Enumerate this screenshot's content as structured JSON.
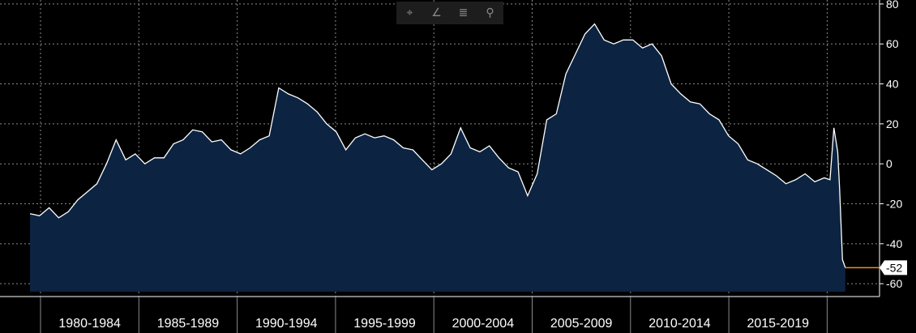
{
  "toolbar": {
    "tools": [
      {
        "icon": "crosshair-icon",
        "glyph": "⌖"
      },
      {
        "icon": "draw-line-icon",
        "glyph": "∠"
      },
      {
        "icon": "list-icon",
        "glyph": "≣"
      },
      {
        "icon": "zoom-icon",
        "glyph": "⚲"
      }
    ]
  },
  "colors": {
    "background": "#000000",
    "area_fill": "#0c2442",
    "line": "#ffffff",
    "grid": "#8a8a8a",
    "last_value_marker": "#f28c28",
    "axis_text": "#ffffff"
  },
  "chart_data": {
    "type": "area",
    "title": "",
    "xlabel": "",
    "ylabel": "",
    "ylim": [
      -64,
      82
    ],
    "yticks": [
      80,
      60,
      40,
      20,
      0,
      -20,
      -40,
      -60
    ],
    "y_axis_side": "right",
    "x_categories": [
      "1980-1984",
      "1985-1989",
      "1990-1994",
      "1995-1999",
      "2000-2004",
      "2005-2009",
      "2010-2014",
      "2015-2019"
    ],
    "x_range": [
      1978.0,
      2021.2
    ],
    "grid": true,
    "last_value_label": "-52",
    "series": [
      {
        "x": [
          1978.0,
          1978.5,
          1979.0,
          1979.5,
          1980.0,
          1980.5,
          1981.0,
          1981.5,
          1982.0,
          1982.5,
          1983.0,
          1983.5,
          1984.0,
          1984.5,
          1985.0,
          1985.5,
          1986.0,
          1986.5,
          1987.0,
          1987.5,
          1988.0,
          1988.5,
          1989.0,
          1989.5,
          1990.0,
          1990.5,
          1991.0,
          1991.5,
          1992.0,
          1992.5,
          1993.0,
          1993.5,
          1994.0,
          1994.5,
          1995.0,
          1995.5,
          1996.0,
          1996.5,
          1997.0,
          1997.5,
          1998.0,
          1998.5,
          1999.0,
          1999.5,
          2000.0,
          2000.5,
          2001.0,
          2001.5,
          2002.0,
          2002.5,
          2003.0,
          2003.5,
          2004.0,
          2004.5,
          2005.0,
          2005.5,
          2006.0,
          2006.5,
          2007.0,
          2007.5,
          2008.0,
          2008.5,
          2009.0,
          2009.5,
          2010.0,
          2010.5,
          2011.0,
          2011.5,
          2012.0,
          2012.5,
          2013.0,
          2013.5,
          2014.0,
          2014.5,
          2015.0,
          2015.5,
          2016.0,
          2016.5,
          2017.0,
          2017.5,
          2018.0,
          2018.5,
          2019.0,
          2019.5,
          2019.8,
          2020.0,
          2020.2,
          2020.3,
          2020.45,
          2020.6
        ],
        "y": [
          -25,
          -26,
          -22,
          -27,
          -24,
          -18,
          -14,
          -10,
          0,
          12,
          2,
          5,
          0,
          3,
          3,
          10,
          12,
          17,
          16,
          11,
          12,
          7,
          5,
          8,
          12,
          14,
          38,
          35,
          33,
          30,
          26,
          20,
          16,
          7,
          13,
          15,
          13,
          14,
          12,
          8,
          7,
          2,
          -3,
          0,
          5,
          18,
          8,
          6,
          9,
          3,
          -2,
          -4,
          -16,
          -5,
          22,
          25,
          45,
          55,
          65,
          70,
          62,
          60,
          62,
          62,
          58,
          60,
          54,
          40,
          35,
          31,
          30,
          25,
          22,
          14,
          10,
          2,
          0,
          -3,
          -6,
          -10,
          -8,
          -5,
          -9,
          -7,
          -8,
          18,
          6,
          -12,
          -48,
          -52
        ]
      }
    ]
  }
}
